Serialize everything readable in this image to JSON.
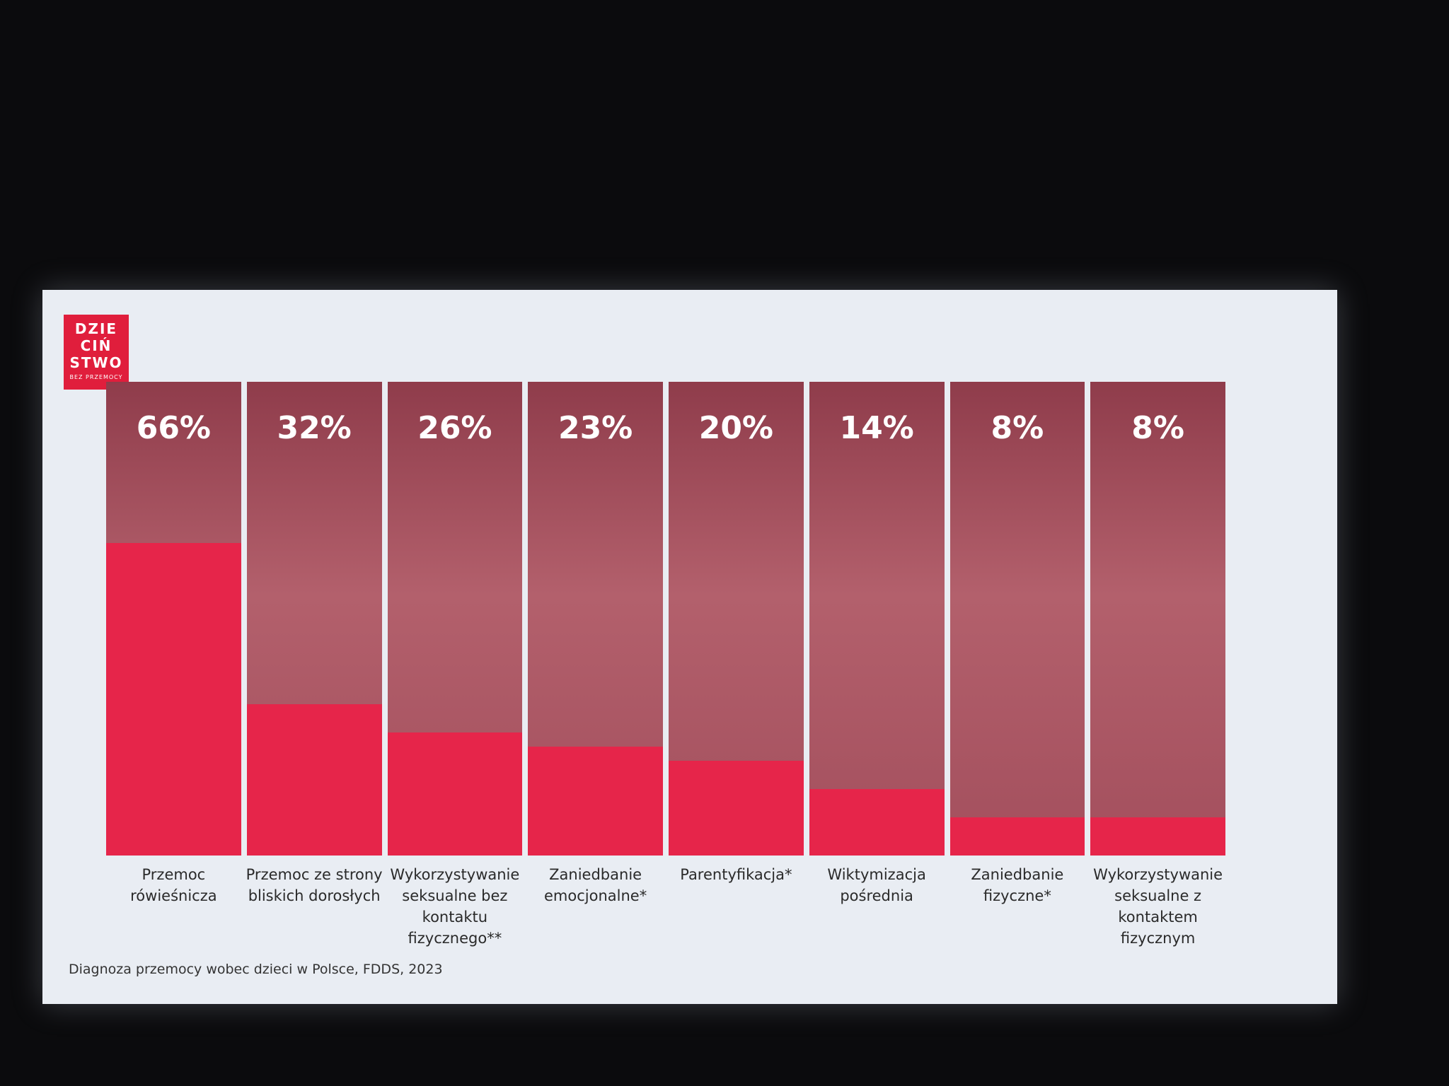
{
  "logo": {
    "lines": [
      "DZIE",
      "CIŃ",
      "STWO"
    ],
    "tagline": "BEZ PRZEMOCY"
  },
  "chart_data": {
    "type": "bar",
    "categories": [
      "Przemoc rówieśnicza",
      "Przemoc ze strony bliskich dorosłych",
      "Wykorzystywanie seksualne bez kontaktu fizycznego**",
      "Zaniedbanie emocjonalne*",
      "Parentyfikacja*",
      "Wiktymizacja pośrednia",
      "Zaniedbanie fizyczne*",
      "Wykorzystywanie seksualne z kontaktem fizycznym"
    ],
    "values": [
      66,
      32,
      26,
      23,
      20,
      14,
      8,
      8
    ],
    "value_labels": [
      "66%",
      "32%",
      "26%",
      "23%",
      "20%",
      "14%",
      "8%",
      "8%"
    ],
    "color": "#e6254a",
    "ylim": [
      0,
      100
    ],
    "source": "Diagnoza przemocy wobec dzieci w Polsce, FDDS, 2023"
  }
}
